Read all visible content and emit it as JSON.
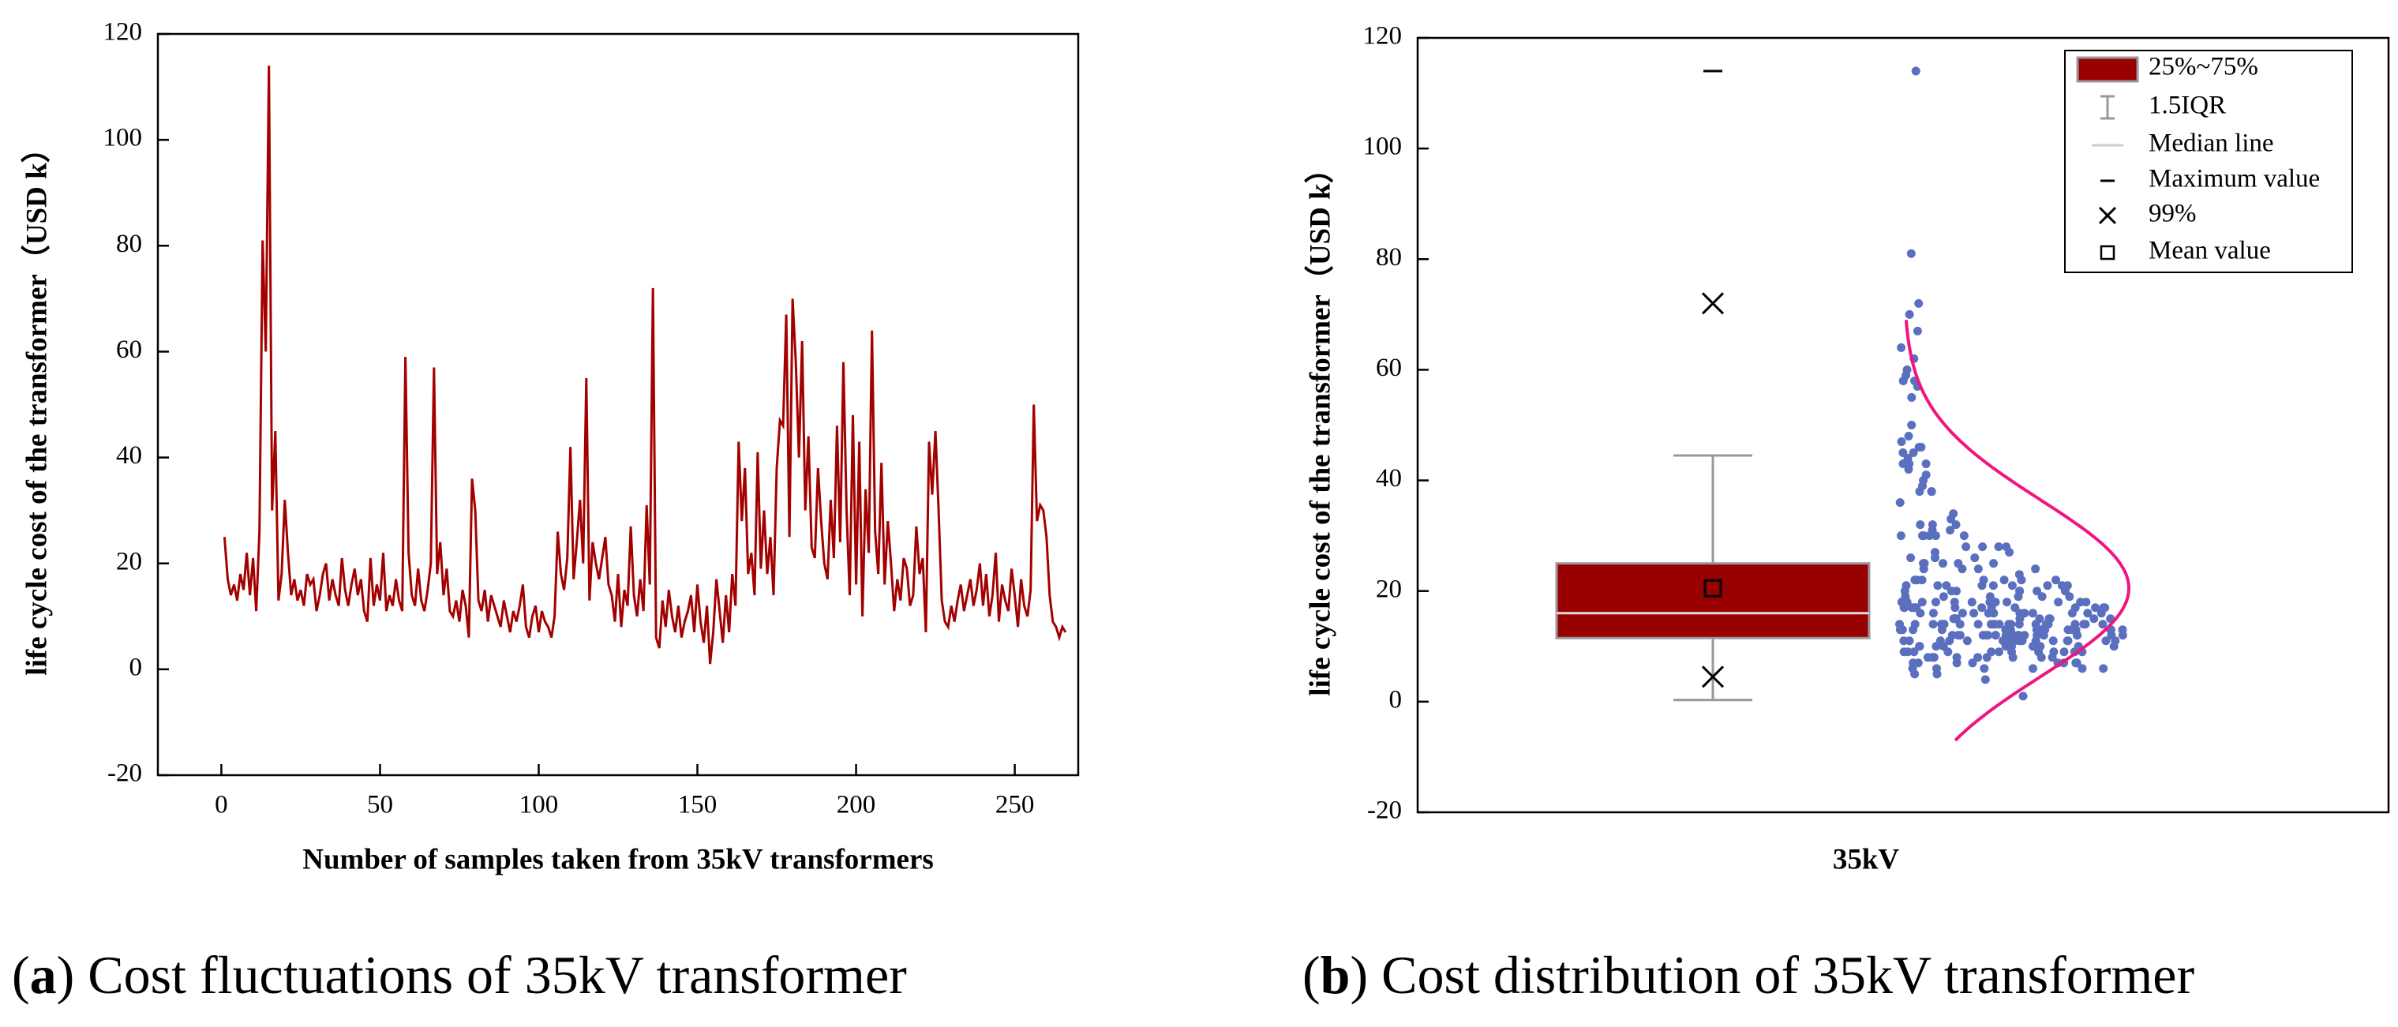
{
  "chart_data": [
    {
      "type": "line",
      "ylabel": "life cycle cost of the transformer（USD k）",
      "xlabel": "Number of samples taken from 35kV transformers",
      "caption": [
        "(",
        "a",
        ") Cost fluctuations of 35kV transformer"
      ],
      "color": "#a30000",
      "xlim": [
        -20,
        270
      ],
      "xticks": [
        0,
        50,
        100,
        150,
        200,
        250
      ],
      "ylim": [
        -20,
        120
      ],
      "yticks": [
        -20,
        0,
        20,
        40,
        60,
        80,
        100,
        120
      ],
      "x": [
        1,
        2,
        3,
        4,
        5,
        6,
        7,
        8,
        9,
        10,
        11,
        12,
        13,
        14,
        15,
        16,
        17,
        18,
        19,
        20,
        21,
        22,
        23,
        24,
        25,
        26,
        27,
        28,
        29,
        30,
        31,
        32,
        33,
        34,
        35,
        36,
        37,
        38,
        39,
        40,
        41,
        42,
        43,
        44,
        45,
        46,
        47,
        48,
        49,
        50,
        51,
        52,
        53,
        54,
        55,
        56,
        57,
        58,
        59,
        60,
        61,
        62,
        63,
        64,
        65,
        66,
        67,
        68,
        69,
        70,
        71,
        72,
        73,
        74,
        75,
        76,
        77,
        78,
        79,
        80,
        81,
        82,
        83,
        84,
        85,
        86,
        87,
        88,
        89,
        90,
        91,
        92,
        93,
        94,
        95,
        96,
        97,
        98,
        99,
        100,
        101,
        102,
        103,
        104,
        105,
        106,
        107,
        108,
        109,
        110,
        111,
        112,
        113,
        114,
        115,
        116,
        117,
        118,
        119,
        120,
        121,
        122,
        123,
        124,
        125,
        126,
        127,
        128,
        129,
        130,
        131,
        132,
        133,
        134,
        135,
        136,
        137,
        138,
        139,
        140,
        141,
        142,
        143,
        144,
        145,
        146,
        147,
        148,
        149,
        150,
        151,
        152,
        153,
        154,
        155,
        156,
        157,
        158,
        159,
        160,
        161,
        162,
        163,
        164,
        165,
        166,
        167,
        168,
        169,
        170,
        171,
        172,
        173,
        174,
        175,
        176,
        177,
        178,
        179,
        180,
        181,
        182,
        183,
        184,
        185,
        186,
        187,
        188,
        189,
        190,
        191,
        192,
        193,
        194,
        195,
        196,
        197,
        198,
        199,
        200,
        201,
        202,
        203,
        204,
        205,
        206,
        207,
        208,
        209,
        210,
        211,
        212,
        213,
        214,
        215,
        216,
        217,
        218,
        219,
        220,
        221,
        222,
        223,
        224,
        225,
        226,
        227,
        228,
        229,
        230,
        231,
        232,
        233,
        234,
        235,
        236,
        237,
        238,
        239,
        240,
        241,
        242,
        243,
        244,
        245,
        246,
        247,
        248,
        249,
        250,
        251,
        252,
        253,
        254,
        255,
        256,
        257,
        258,
        259,
        260,
        261,
        262,
        263,
        264,
        265,
        266
      ],
      "values": [
        25,
        17,
        14,
        16,
        13,
        18,
        15,
        22,
        14,
        21,
        11,
        26,
        81,
        60,
        114,
        30,
        45,
        13,
        18,
        32,
        22,
        14,
        17,
        13,
        15,
        12,
        18,
        16,
        17,
        11,
        14,
        18,
        20,
        13,
        17,
        14,
        12,
        21,
        15,
        12,
        16,
        19,
        14,
        17,
        11,
        9,
        21,
        12,
        16,
        13,
        22,
        11,
        14,
        12,
        17,
        13,
        11,
        59,
        22,
        14,
        12,
        19,
        13,
        11,
        15,
        20,
        57,
        18,
        24,
        14,
        19,
        11,
        10,
        13,
        9,
        15,
        12,
        6,
        36,
        30,
        13,
        11,
        15,
        9,
        14,
        12,
        10,
        8,
        13,
        10,
        7,
        11,
        9,
        12,
        16,
        8,
        6,
        10,
        12,
        7,
        11,
        9,
        8,
        6,
        10,
        26,
        18,
        15,
        21,
        42,
        17,
        24,
        32,
        20,
        55,
        13,
        24,
        20,
        17,
        21,
        25,
        16,
        14,
        9,
        18,
        8,
        15,
        12,
        27,
        14,
        10,
        17,
        11,
        31,
        16,
        72,
        6,
        4,
        13,
        8,
        15,
        10,
        7,
        12,
        6,
        9,
        11,
        14,
        7,
        16,
        9,
        5,
        12,
        1,
        7,
        17,
        11,
        5,
        14,
        7,
        18,
        12,
        43,
        28,
        38,
        18,
        22,
        14,
        41,
        19,
        30,
        18,
        25,
        14,
        38,
        47,
        46,
        67,
        25,
        70,
        58,
        40,
        62,
        30,
        44,
        23,
        21,
        38,
        28,
        20,
        17,
        32,
        21,
        46,
        24,
        58,
        30,
        14,
        48,
        16,
        43,
        10,
        34,
        22,
        64,
        26,
        18,
        39,
        16,
        28,
        20,
        11,
        17,
        13,
        21,
        19,
        12,
        14,
        27,
        18,
        21,
        7,
        43,
        33,
        45,
        30,
        13,
        9,
        8,
        12,
        9,
        13,
        16,
        11,
        14,
        17,
        12,
        15,
        20,
        12,
        18,
        10,
        14,
        22,
        9,
        16,
        13,
        11,
        19,
        14,
        8,
        17,
        12,
        10,
        15,
        50,
        28,
        31,
        30,
        25,
        14,
        9,
        8,
        6,
        8,
        7
      ]
    },
    {
      "type": "box",
      "ylabel": "life cycle cost of the transformer（USD k）",
      "categories": [
        "35kV"
      ],
      "caption": [
        "(",
        "b",
        ") Cost distribution of 35kV transformer"
      ],
      "ylim": [
        -20,
        120
      ],
      "yticks": [
        -20,
        0,
        20,
        40,
        60,
        80,
        100,
        120
      ],
      "box": {
        "q1": 11.5,
        "median": 16,
        "q3": 25,
        "whisker_low": 0.3,
        "whisker_high": 44.5,
        "max": 114,
        "p99": 72,
        "p1": 4.5,
        "mean": 20.5
      },
      "box_color": "#990000",
      "point_color": "#5b6fbf",
      "curve_color": "#f0157f",
      "curve": {
        "sd": 16,
        "range": [
          -7,
          69
        ]
      },
      "legend": [
        "25%~75%",
        "1.5IQR",
        "Median line",
        "Maximum value",
        "99%",
        "Mean value"
      ],
      "legend_corner": "top-right"
    }
  ]
}
